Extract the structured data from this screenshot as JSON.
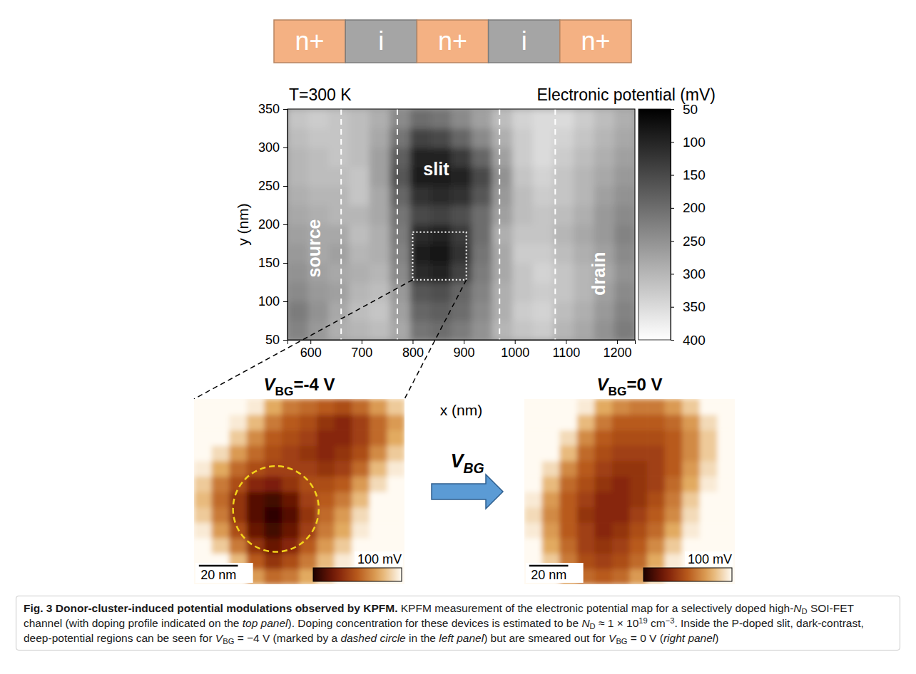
{
  "doping_profile": {
    "labels": [
      "n+",
      "i",
      "n+",
      "i",
      "n+"
    ],
    "colors": [
      "#f4b183",
      "#a5a5a5",
      "#f4b183",
      "#a5a5a5",
      "#f4b183"
    ]
  },
  "chart_data": [
    {
      "type": "heatmap",
      "title": "T=300 K",
      "colorbar_title": "Electronic potential (mV)",
      "x_label": "x (nm)",
      "y_label": "y (nm)",
      "xlim": [
        555,
        1235
      ],
      "ylim": [
        50,
        350
      ],
      "xticks": [
        600,
        700,
        800,
        900,
        1000,
        1100,
        1200
      ],
      "yticks": [
        50,
        100,
        150,
        200,
        250,
        300,
        350
      ],
      "zlim": [
        50,
        400
      ],
      "colorbar_ticks": [
        50,
        100,
        150,
        200,
        250,
        300,
        350,
        400
      ],
      "x": [
        575,
        615,
        655,
        695,
        735,
        775,
        815,
        855,
        895,
        935,
        975,
        1015,
        1055,
        1095,
        1135,
        1175,
        1215
      ],
      "y": [
        62.5,
        87.5,
        112.5,
        137.5,
        162.5,
        187.5,
        212.5,
        237.5,
        262.5,
        287.5,
        312.5,
        337.5
      ],
      "z": [
        [
          230,
          260,
          290,
          300,
          310,
          280,
          210,
          200,
          220,
          250,
          300,
          320,
          330,
          300,
          280,
          250,
          220
        ],
        [
          220,
          250,
          280,
          310,
          320,
          270,
          190,
          180,
          200,
          240,
          290,
          330,
          340,
          310,
          290,
          260,
          230
        ],
        [
          240,
          260,
          270,
          300,
          310,
          260,
          170,
          160,
          190,
          230,
          290,
          320,
          330,
          320,
          300,
          270,
          240
        ],
        [
          250,
          270,
          280,
          290,
          300,
          240,
          110,
          100,
          140,
          220,
          280,
          320,
          340,
          320,
          300,
          280,
          250
        ],
        [
          260,
          280,
          270,
          300,
          290,
          230,
          90,
          80,
          120,
          210,
          280,
          330,
          330,
          310,
          290,
          270,
          240
        ],
        [
          270,
          280,
          280,
          310,
          290,
          220,
          110,
          100,
          130,
          200,
          290,
          320,
          320,
          300,
          280,
          260,
          230
        ],
        [
          280,
          290,
          300,
          300,
          280,
          210,
          150,
          140,
          160,
          200,
          270,
          310,
          320,
          310,
          290,
          260,
          240
        ],
        [
          290,
          300,
          300,
          320,
          280,
          190,
          120,
          110,
          120,
          170,
          260,
          310,
          330,
          320,
          300,
          270,
          250
        ],
        [
          300,
          310,
          310,
          320,
          270,
          170,
          90,
          90,
          100,
          150,
          250,
          320,
          340,
          320,
          300,
          280,
          260
        ],
        [
          300,
          310,
          320,
          310,
          270,
          180,
          100,
          100,
          130,
          190,
          270,
          330,
          350,
          330,
          310,
          290,
          270
        ],
        [
          310,
          320,
          320,
          310,
          280,
          210,
          140,
          150,
          190,
          240,
          290,
          330,
          350,
          340,
          320,
          300,
          280
        ],
        [
          320,
          330,
          320,
          310,
          290,
          240,
          200,
          210,
          240,
          270,
          310,
          340,
          350,
          350,
          330,
          310,
          290
        ]
      ],
      "region_boundaries": [
        660,
        770,
        970,
        1079
      ],
      "zoom_box": {
        "x": [
          800,
          905
        ],
        "y": [
          128,
          190
        ]
      },
      "annotations": [
        {
          "text": "source",
          "x": 607,
          "y": 169,
          "orientation": "vertical"
        },
        {
          "text": "slit",
          "x": 846,
          "y": 272
        },
        {
          "text": "drain",
          "x": 1164,
          "y": 136,
          "orientation": "vertical"
        }
      ]
    },
    {
      "type": "heatmap",
      "title": [
        {
          "text": "V",
          "italic": true
        },
        {
          "text": "BG",
          "sub": true
        },
        {
          "text": "=-4 V"
        }
      ],
      "tick_labels": false,
      "xlim": [
        0,
        108
      ],
      "ylim": [
        0,
        96
      ],
      "zlim": [
        0,
        100
      ],
      "colorbar_label": "100 mV",
      "scale_bar": {
        "length": 20,
        "label": "20 nm"
      },
      "circle": {
        "cx": 42,
        "cy": 39,
        "r": 22
      },
      "x": [
        4.5,
        13.5,
        22.5,
        31.5,
        40.5,
        49.5,
        58.5,
        67.5,
        76.5,
        85.5,
        94.5,
        103.5
      ],
      "y": [
        4,
        12,
        20,
        28,
        36,
        44,
        52,
        60,
        68,
        76,
        84,
        92
      ],
      "z": [
        [
          100,
          100,
          100,
          70,
          55,
          60,
          75,
          90,
          100,
          100,
          100,
          100
        ],
        [
          100,
          100,
          80,
          50,
          35,
          45,
          60,
          80,
          95,
          100,
          100,
          100
        ],
        [
          100,
          85,
          60,
          35,
          20,
          30,
          50,
          70,
          85,
          100,
          100,
          100
        ],
        [
          95,
          70,
          45,
          20,
          10,
          20,
          40,
          60,
          75,
          95,
          100,
          100
        ],
        [
          85,
          60,
          35,
          15,
          5,
          15,
          35,
          55,
          70,
          90,
          100,
          100
        ],
        [
          80,
          55,
          35,
          15,
          10,
          20,
          40,
          50,
          60,
          80,
          100,
          100
        ],
        [
          85,
          60,
          45,
          30,
          25,
          35,
          45,
          45,
          50,
          70,
          90,
          100
        ],
        [
          95,
          75,
          55,
          45,
          40,
          40,
          40,
          35,
          40,
          55,
          80,
          95
        ],
        [
          100,
          90,
          70,
          55,
          45,
          40,
          35,
          30,
          35,
          45,
          65,
          85
        ],
        [
          100,
          100,
          85,
          65,
          50,
          45,
          40,
          30,
          30,
          40,
          55,
          75
        ],
        [
          100,
          100,
          95,
          80,
          60,
          50,
          45,
          35,
          30,
          40,
          55,
          70
        ],
        [
          100,
          100,
          100,
          95,
          75,
          60,
          55,
          50,
          45,
          55,
          70,
          85
        ]
      ]
    },
    {
      "type": "heatmap",
      "title": [
        {
          "text": "V",
          "italic": true
        },
        {
          "text": "BG",
          "sub": true
        },
        {
          "text": "=0 V"
        }
      ],
      "tick_labels": false,
      "xlim": [
        0,
        108
      ],
      "ylim": [
        0,
        96
      ],
      "zlim": [
        0,
        100
      ],
      "colorbar_label": "100 mV",
      "scale_bar": {
        "length": 20,
        "label": "20 nm"
      },
      "x": [
        4.5,
        13.5,
        22.5,
        31.5,
        40.5,
        49.5,
        58.5,
        67.5,
        76.5,
        85.5,
        94.5,
        103.5
      ],
      "y": [
        4,
        12,
        20,
        28,
        36,
        44,
        52,
        60,
        68,
        76,
        84,
        92
      ],
      "z": [
        [
          100,
          100,
          70,
          55,
          50,
          55,
          70,
          90,
          100,
          100,
          100,
          100
        ],
        [
          100,
          85,
          60,
          45,
          40,
          45,
          55,
          75,
          95,
          100,
          100,
          100
        ],
        [
          100,
          75,
          55,
          40,
          35,
          40,
          50,
          65,
          85,
          100,
          100,
          100
        ],
        [
          95,
          70,
          50,
          40,
          30,
          35,
          45,
          55,
          75,
          95,
          100,
          100
        ],
        [
          90,
          65,
          50,
          35,
          30,
          30,
          40,
          50,
          65,
          90,
          100,
          100
        ],
        [
          95,
          70,
          50,
          40,
          30,
          30,
          35,
          45,
          60,
          85,
          100,
          100
        ],
        [
          100,
          80,
          55,
          45,
          35,
          30,
          35,
          40,
          55,
          75,
          95,
          100
        ],
        [
          100,
          90,
          65,
          50,
          40,
          35,
          35,
          40,
          50,
          70,
          90,
          100
        ],
        [
          100,
          100,
          80,
          55,
          45,
          40,
          40,
          40,
          50,
          65,
          85,
          100
        ],
        [
          100,
          100,
          90,
          65,
          50,
          45,
          45,
          45,
          50,
          65,
          85,
          100
        ],
        [
          100,
          100,
          100,
          80,
          60,
          50,
          50,
          50,
          55,
          70,
          90,
          100
        ],
        [
          100,
          100,
          100,
          95,
          75,
          65,
          60,
          60,
          70,
          85,
          100,
          100
        ]
      ]
    }
  ],
  "arrow_label": [
    {
      "text": "V",
      "italic": true
    },
    {
      "text": "BG",
      "sub": true
    }
  ],
  "caption": [
    {
      "text": "Fig. 3",
      "bold": true
    },
    {
      "text": " Donor-cluster-induced potential modulations observed by KPFM.",
      "bold": true
    },
    {
      "text": " KPFM measurement of the electronic potential map for a selectively doped high-"
    },
    {
      "text": "N",
      "italic": true
    },
    {
      "text": "D",
      "sub": true
    },
    {
      "text": " SOI-FET channel (with doping profile indicated on the "
    },
    {
      "text": "top panel",
      "italic": true
    },
    {
      "text": "). Doping concentration for these devices is estimated to be "
    },
    {
      "text": "N",
      "italic": true
    },
    {
      "text": "D",
      "sub": true
    },
    {
      "text": " ≈ 1 × 10"
    },
    {
      "text": "19",
      "sup": true
    },
    {
      "text": " cm"
    },
    {
      "text": "−3",
      "sup": true
    },
    {
      "text": ". Inside the P-doped slit, dark-contrast, deep-potential regions can be seen for "
    },
    {
      "text": "V",
      "italic": true
    },
    {
      "text": "BG",
      "sub": true
    },
    {
      "text": " = −4 V (marked by a "
    },
    {
      "text": "dashed circle",
      "italic": true
    },
    {
      "text": " in the "
    },
    {
      "text": "left panel",
      "italic": true
    },
    {
      "text": ") but are smeared out for "
    },
    {
      "text": "V",
      "italic": true
    },
    {
      "text": "BG",
      "sub": true
    },
    {
      "text": " = 0 V ("
    },
    {
      "text": "right panel",
      "italic": true
    },
    {
      "text": ")"
    }
  ]
}
